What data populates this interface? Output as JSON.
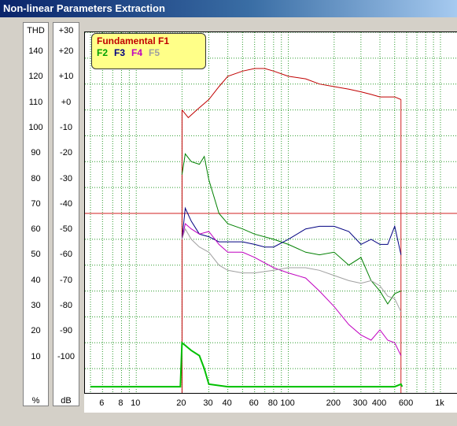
{
  "window": {
    "title": "Non-linear Parameters Extraction"
  },
  "left_axis": {
    "unit_header": "THD",
    "unit_footer": "%",
    "labels": [
      "140",
      "120",
      "110",
      "100",
      "90",
      "80",
      "70",
      "60",
      "50",
      "40",
      "30",
      "20",
      "10"
    ]
  },
  "right_axis": {
    "unit_header": "+30",
    "unit_footer": "dB",
    "labels": [
      "+20",
      "+10",
      "+0",
      "-10",
      "-20",
      "-30",
      "-40",
      "-50",
      "-60",
      "-70",
      "-80",
      "-90",
      "-100"
    ]
  },
  "legend": {
    "title": "Fundamental F1",
    "items": [
      {
        "label": "F2",
        "color": "#00a000"
      },
      {
        "label": "F3",
        "color": "#000080"
      },
      {
        "label": "F4",
        "color": "#c000c0"
      },
      {
        "label": "F5",
        "color": "#a0a0a0"
      }
    ]
  },
  "chart_data": {
    "type": "line",
    "title": "",
    "xlabel": "",
    "ylabel": "dB",
    "xscale": "log",
    "xlim": [
      4.6,
      1300
    ],
    "ylim": [
      -110,
      30
    ],
    "x_tick_labels": [
      "6",
      "8",
      "10",
      "20",
      "30",
      "40",
      "60",
      "80",
      "100",
      "200",
      "300",
      "400",
      "600",
      "1k"
    ],
    "x_ticks": [
      6,
      8,
      10,
      20,
      30,
      40,
      60,
      80,
      100,
      200,
      300,
      400,
      600,
      1000
    ],
    "y_ticks": [
      30,
      20,
      10,
      0,
      -10,
      -20,
      -30,
      -40,
      -50,
      -60,
      -70,
      -80,
      -90,
      -100
    ],
    "grid": true,
    "legend_position": "top-left",
    "reference_line": {
      "y": -40,
      "x_marker": 550,
      "color": "#d02020"
    },
    "series": [
      {
        "name": "Fundamental F1",
        "color": "#c00000",
        "x": [
          20,
          22,
          25,
          30,
          35,
          40,
          50,
          60,
          70,
          80,
          100,
          130,
          160,
          200,
          250,
          300,
          350,
          400,
          450,
          500,
          550
        ],
        "y": [
          0,
          -3,
          0,
          4,
          9,
          13,
          15,
          16,
          16,
          15,
          13,
          12,
          10,
          9,
          8,
          7,
          6,
          5,
          5,
          5,
          4
        ]
      },
      {
        "name": "F2",
        "color": "#008000",
        "x": [
          20,
          21,
          23,
          26,
          28,
          30,
          35,
          40,
          50,
          60,
          80,
          100,
          130,
          160,
          200,
          250,
          300,
          350,
          400,
          450,
          500,
          550
        ],
        "y": [
          -25,
          -17,
          -20,
          -21,
          -18,
          -27,
          -40,
          -44,
          -46,
          -48,
          -50,
          -52,
          -55,
          -56,
          -55,
          -60,
          -57,
          -66,
          -70,
          -75,
          -71,
          -70
        ]
      },
      {
        "name": "F3",
        "color": "#000080",
        "x": [
          20,
          21,
          23,
          26,
          30,
          35,
          40,
          50,
          60,
          70,
          80,
          100,
          130,
          160,
          200,
          250,
          300,
          350,
          400,
          450,
          500,
          550
        ],
        "y": [
          -50,
          -38,
          -43,
          -48,
          -49,
          -51,
          -51,
          -51,
          -52,
          -53,
          -53,
          -50,
          -46,
          -45,
          -45,
          -47,
          -52,
          -50,
          -52,
          -52,
          -45,
          -56
        ]
      },
      {
        "name": "F4",
        "color": "#c000c0",
        "x": [
          20,
          21,
          23,
          26,
          30,
          35,
          40,
          50,
          60,
          80,
          100,
          130,
          160,
          200,
          250,
          300,
          350,
          400,
          450,
          500,
          550
        ],
        "y": [
          -50,
          -44,
          -46,
          -48,
          -47,
          -52,
          -55,
          -55,
          -57,
          -61,
          -63,
          -65,
          -70,
          -76,
          -83,
          -87,
          -89,
          -85,
          -89,
          -90,
          -95
        ]
      },
      {
        "name": "F5",
        "color": "#a0a0a0",
        "x": [
          20,
          21,
          23,
          26,
          30,
          35,
          40,
          50,
          60,
          80,
          100,
          130,
          160,
          200,
          250,
          300,
          350,
          400,
          450,
          500,
          550
        ],
        "y": [
          -50,
          -46,
          -50,
          -53,
          -55,
          -60,
          -62,
          -63,
          -63,
          -62,
          -61,
          -61,
          -62,
          -64,
          -66,
          -67,
          -66,
          -68,
          -72,
          -73,
          -78
        ]
      },
      {
        "name": "THD",
        "color": "#00c000",
        "x": [
          5,
          19.5,
          20,
          21,
          23,
          26,
          28,
          30,
          40,
          100,
          300,
          500,
          550,
          560
        ],
        "y": [
          -107,
          -107,
          -90,
          -91,
          -93,
          -95,
          -100,
          -106,
          -107,
          -107,
          -107,
          -107,
          -106,
          -107
        ]
      }
    ]
  }
}
